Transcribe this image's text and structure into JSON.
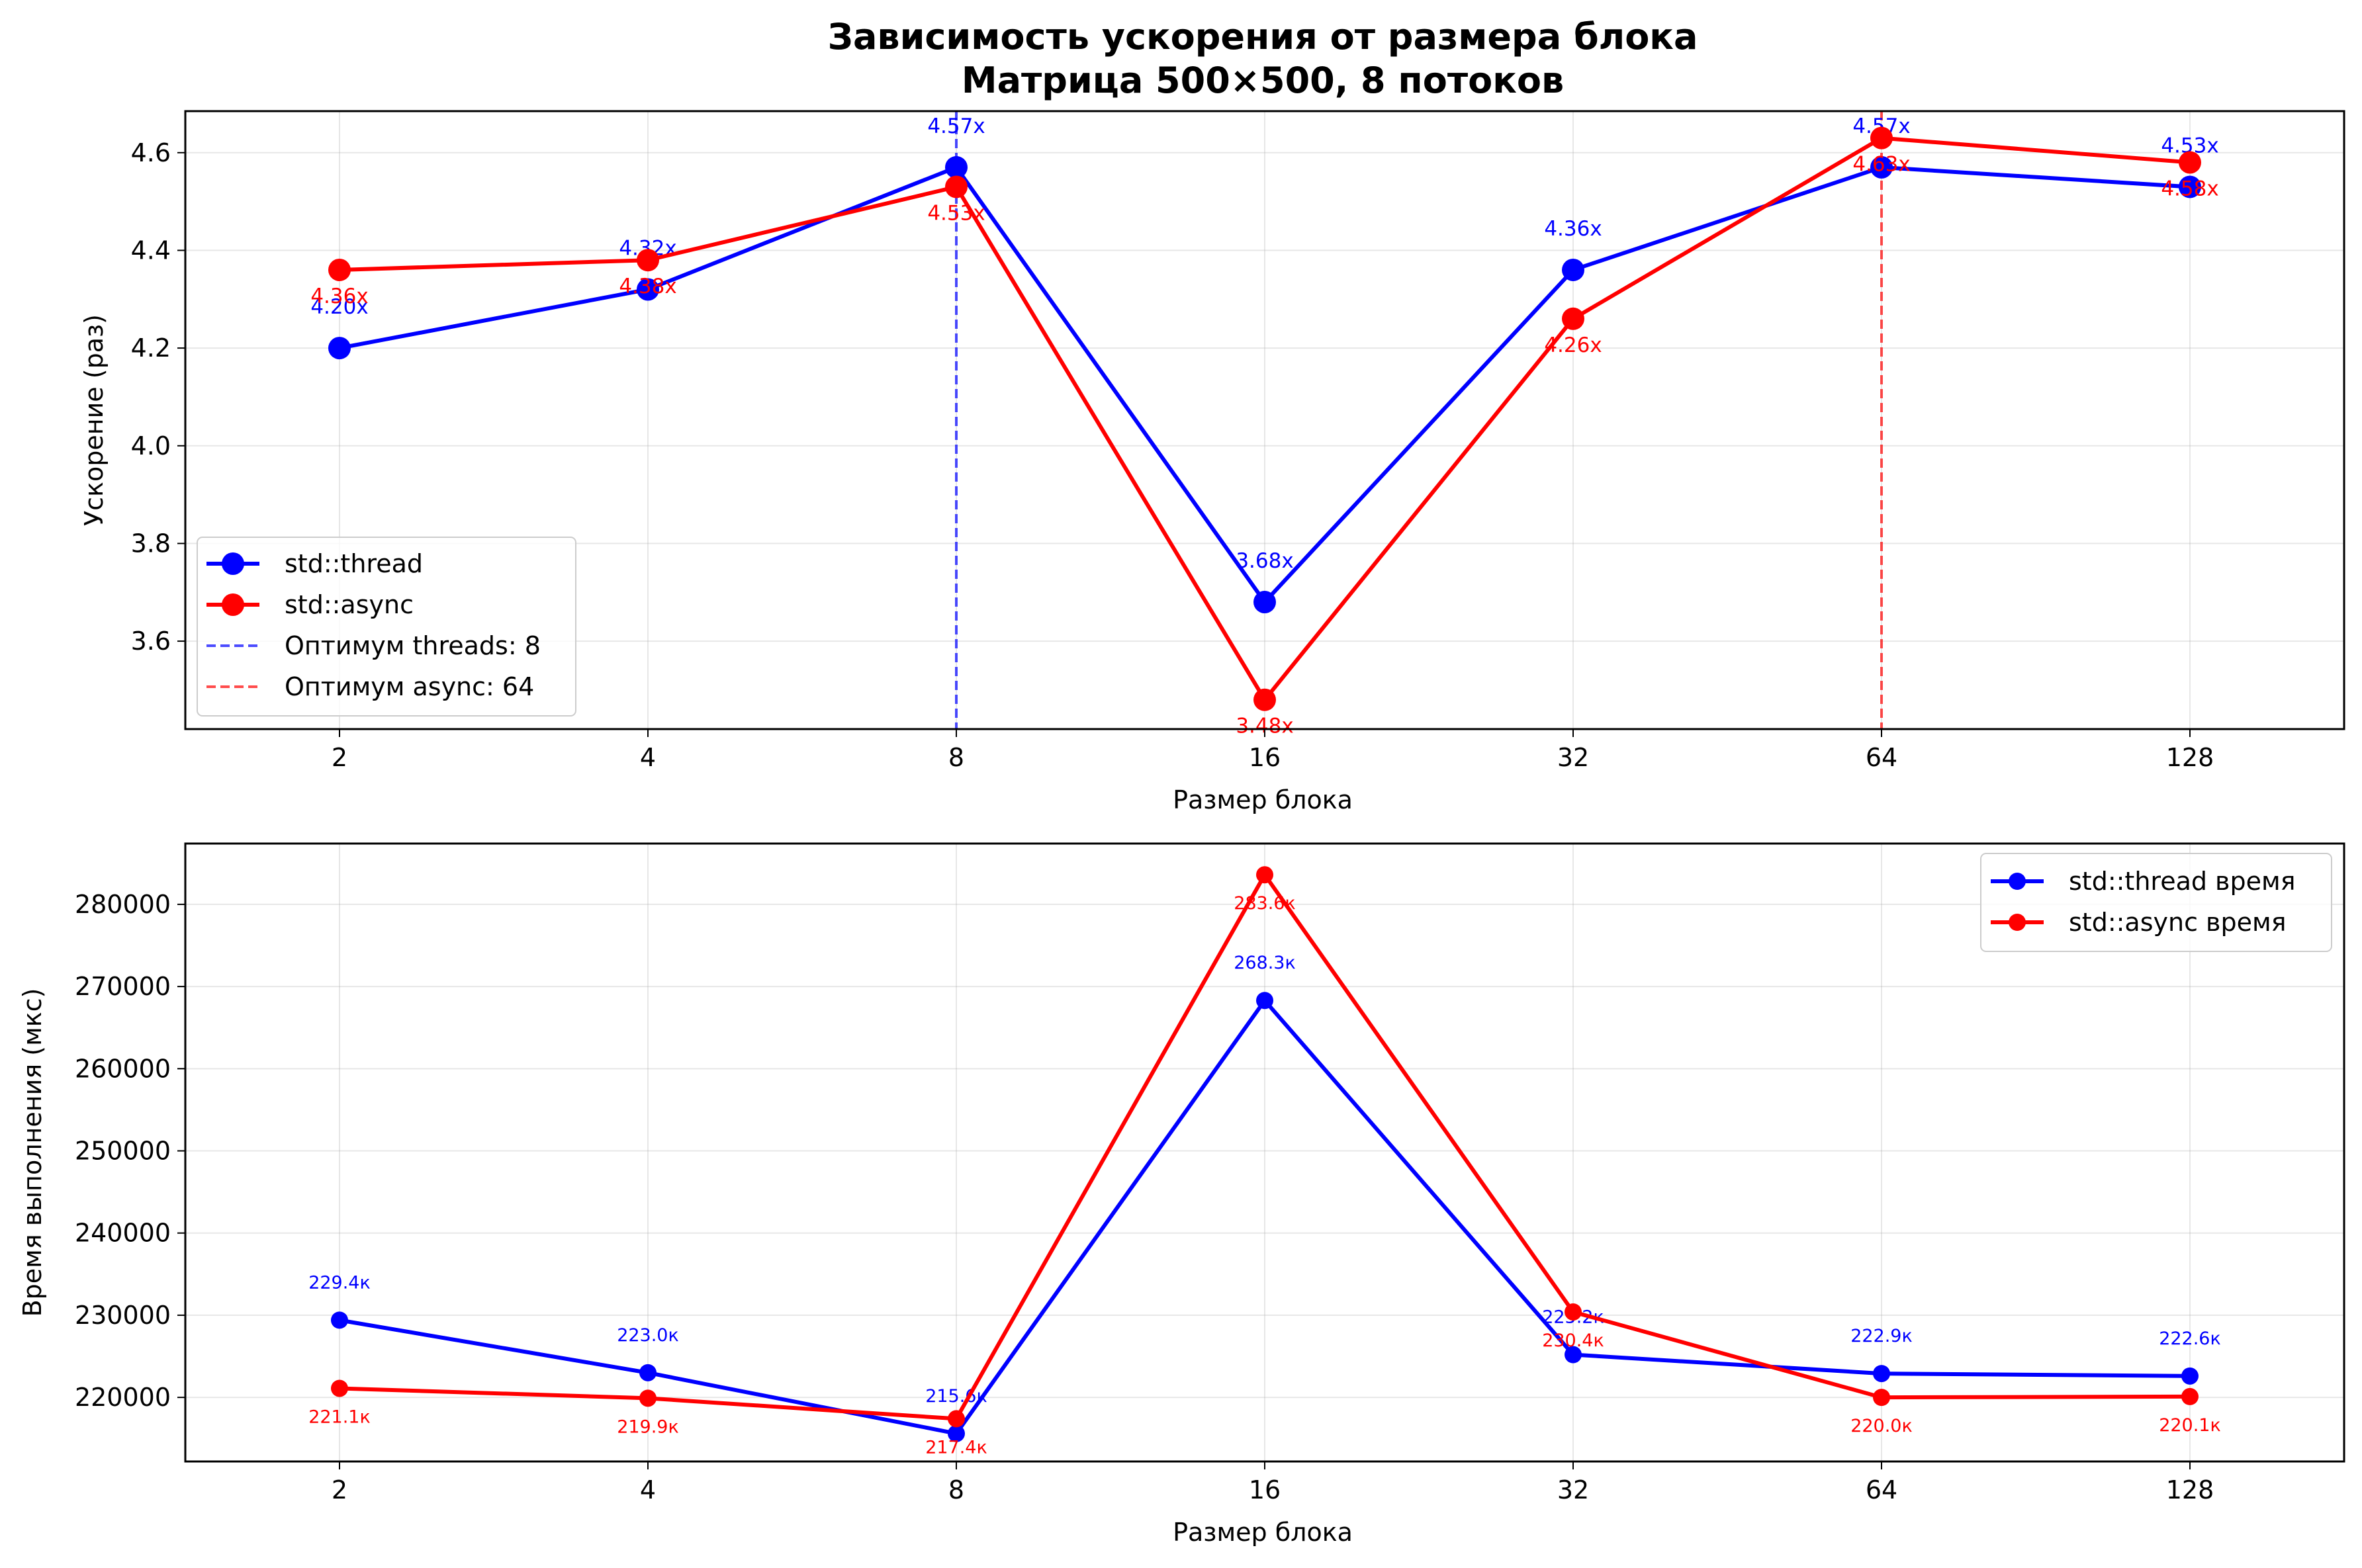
{
  "chart_data": [
    {
      "type": "line",
      "title": "Зависимость ускорения от размера блока",
      "subtitle": "Матрица 500×500, 8 потоков",
      "xlabel": "Размер блока",
      "ylabel": "Ускорение (раз)",
      "categories": [
        "2",
        "4",
        "8",
        "16",
        "32",
        "64",
        "128"
      ],
      "x_scale": "log2",
      "ylim": [
        3.42,
        4.685
      ],
      "yticks": [
        3.6,
        3.8,
        4.0,
        4.2,
        4.4,
        4.6
      ],
      "ytick_labels": [
        "3.6",
        "3.8",
        "4.0",
        "4.2",
        "4.4",
        "4.6"
      ],
      "grid": true,
      "legend_position": "lower-left",
      "series": [
        {
          "name": "std::thread",
          "color": "#0000ff",
          "values": [
            4.2,
            4.32,
            4.57,
            3.68,
            4.36,
            4.57,
            4.53
          ],
          "labels": [
            "4.20x",
            "4.32x",
            "4.57x",
            "3.68x",
            "4.36x",
            "4.57x",
            "4.53x"
          ]
        },
        {
          "name": "std::async",
          "color": "#ff0000",
          "values": [
            4.36,
            4.38,
            4.53,
            3.48,
            4.26,
            4.63,
            4.58
          ],
          "labels": [
            "4.36x",
            "4.38x",
            "4.53x",
            "3.48x",
            "4.26x",
            "4.63x",
            "4.58x"
          ]
        }
      ],
      "vlines": [
        {
          "name": "Оптимум threads: 8",
          "category": "8",
          "color": "#0000ff"
        },
        {
          "name": "Оптимум async: 64",
          "category": "64",
          "color": "#ff0000"
        }
      ]
    },
    {
      "type": "line",
      "xlabel": "Размер блока",
      "ylabel": "Время выполнения (мкс)",
      "categories": [
        "2",
        "4",
        "8",
        "16",
        "32",
        "64",
        "128"
      ],
      "x_scale": "log2",
      "ylim": [
        212200,
        287400
      ],
      "yticks": [
        220000,
        230000,
        240000,
        250000,
        260000,
        270000,
        280000
      ],
      "ytick_labels": [
        "220000",
        "230000",
        "240000",
        "250000",
        "260000",
        "270000",
        "280000"
      ],
      "grid": true,
      "legend_position": "upper-right",
      "series": [
        {
          "name": "std::thread время",
          "color": "#0000ff",
          "values": [
            229400,
            223000,
            215600,
            268300,
            225200,
            222900,
            222600
          ],
          "labels": [
            "229.4к",
            "223.0к",
            "215.6к",
            "268.3к",
            "225.2к",
            "222.9к",
            "222.6к"
          ]
        },
        {
          "name": "std::async время",
          "color": "#ff0000",
          "values": [
            221100,
            219900,
            217400,
            283600,
            230400,
            220000,
            220100
          ],
          "labels": [
            "221.1к",
            "219.9к",
            "217.4к",
            "283.6к",
            "230.4к",
            "220.0к",
            "220.1к"
          ]
        }
      ]
    }
  ]
}
